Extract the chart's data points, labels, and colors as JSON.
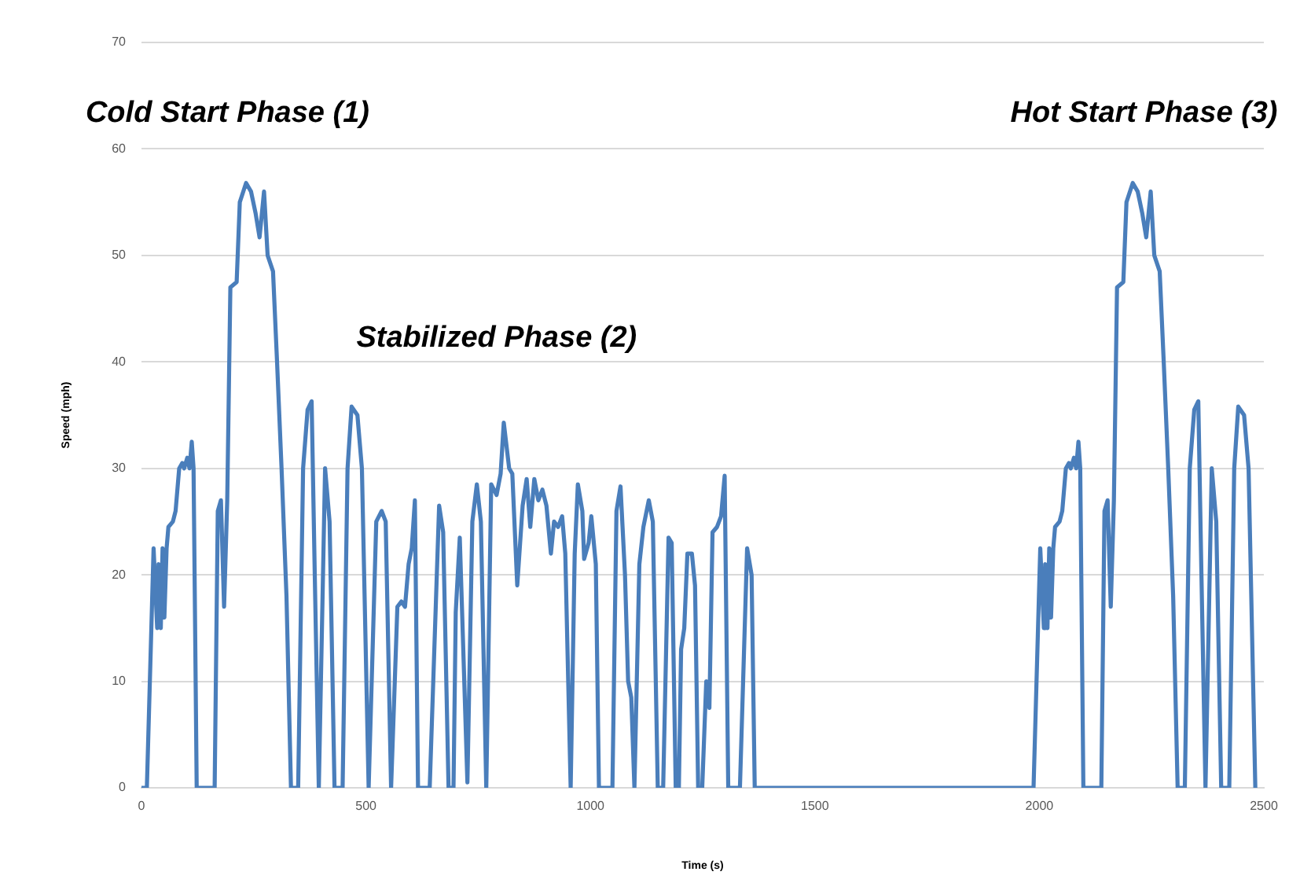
{
  "chart_data": {
    "type": "line",
    "xlabel": "Time (s)",
    "ylabel": "Speed (mph)",
    "xlim": [
      0,
      2500
    ],
    "xticks": [
      0,
      500,
      1000,
      1500,
      2000,
      2500
    ],
    "ylim": [
      0,
      70
    ],
    "yticks": [
      0,
      10,
      20,
      30,
      40,
      50,
      60,
      70
    ],
    "grid": "y",
    "legend": false,
    "marker": "none",
    "line_style": "solid",
    "annotations": [
      "Cold Start Phase (1)",
      "Stabilized Phase (2)",
      "Hot Start Phase (3)"
    ],
    "series": [
      {
        "color": "#4a7ebb",
        "x": [
          0,
          12,
          27,
          35,
          38,
          43,
          47,
          51,
          56,
          60,
          70,
          76,
          84,
          91,
          95,
          102,
          107,
          112,
          116,
          123,
          163,
          170,
          177,
          184,
          191,
          198,
          212,
          219,
          233,
          244,
          254,
          263,
          273,
          281,
          293,
          302,
          312,
          323,
          333,
          349,
          360,
          370,
          379,
          386,
          395,
          409,
          419,
          430,
          448,
          459,
          468,
          481,
          491,
          506,
          523,
          535,
          544,
          556,
          570,
          579,
          587,
          595,
          602,
          609,
          616,
          642,
          663,
          672,
          684,
          695,
          700,
          709,
          719,
          726,
          737,
          747,
          756,
          768,
          779,
          791,
          800,
          807,
          819,
          826,
          837,
          849,
          858,
          866,
          875,
          884,
          893,
          902,
          912,
          919,
          928,
          937,
          944,
          956,
          965,
          972,
          982,
          986,
          996,
          1002,
          1012,
          1019,
          1049,
          1058,
          1067,
          1077,
          1084,
          1091,
          1098,
          1109,
          1118,
          1130,
          1139,
          1150,
          1162,
          1174,
          1181,
          1190,
          1197,
          1202,
          1209,
          1216,
          1226,
          1233,
          1240,
          1249,
          1258,
          1265,
          1272,
          1282,
          1291,
          1299,
          1307,
          1333,
          1349,
          1359,
          1366,
          1987,
          2002,
          2010,
          2013,
          2018,
          2022,
          2026,
          2031,
          2035,
          2045,
          2051,
          2059,
          2066,
          2070,
          2077,
          2082,
          2087,
          2091,
          2098,
          2138,
          2145,
          2152,
          2159,
          2166,
          2173,
          2187,
          2194,
          2208,
          2219,
          2229,
          2238,
          2248,
          2256,
          2268,
          2277,
          2287,
          2298,
          2308,
          2324,
          2335,
          2345,
          2354,
          2361,
          2370,
          2384,
          2394,
          2405,
          2423,
          2434,
          2443,
          2456,
          2466,
          2481
        ],
        "values": [
          0,
          0,
          22.5,
          15,
          21,
          15,
          22.5,
          16,
          22.5,
          24.5,
          25,
          26,
          30,
          30.5,
          30,
          31,
          30,
          32.5,
          30,
          0,
          0,
          26,
          27,
          17,
          27,
          47,
          47.5,
          55,
          56.8,
          56,
          54,
          51.7,
          56,
          50,
          48.5,
          40,
          30,
          18,
          0,
          0,
          30,
          35.5,
          36.3,
          20,
          0,
          30,
          25,
          0,
          0,
          30,
          35.8,
          35,
          30,
          0,
          25,
          26,
          25,
          0,
          17,
          17.5,
          17,
          21,
          22.5,
          27,
          0,
          0,
          26.5,
          24,
          0,
          0,
          16.5,
          23.5,
          10,
          0.5,
          25,
          28.5,
          25,
          0,
          28.5,
          27.5,
          29.5,
          34.3,
          30,
          29.5,
          19,
          26.5,
          29,
          24.5,
          29,
          27,
          28,
          26.5,
          22,
          25,
          24.5,
          25.5,
          22,
          0,
          22,
          28.5,
          26,
          21.5,
          23,
          25.5,
          21,
          0,
          0,
          26,
          28.3,
          20,
          10,
          8.5,
          0,
          21,
          24.5,
          27,
          25,
          0,
          0,
          23.5,
          23,
          0,
          0,
          13,
          15,
          22,
          22,
          19,
          0,
          0,
          10,
          7.5,
          24,
          24.5,
          25.5,
          29.3,
          0,
          0,
          22.5,
          20,
          0,
          0,
          22.5,
          15,
          21,
          15,
          22.5,
          16,
          22.5,
          24.5,
          25,
          26,
          30,
          30.5,
          30,
          31,
          30,
          32.5,
          30,
          0,
          0,
          26,
          27,
          17,
          27,
          47,
          47.5,
          55,
          56.8,
          56,
          54,
          51.7,
          56,
          50,
          48.5,
          40,
          30,
          18,
          0,
          0,
          30,
          35.5,
          36.3,
          20,
          0,
          30,
          25,
          0,
          0,
          30,
          35.8,
          35,
          30,
          0
        ]
      }
    ]
  }
}
